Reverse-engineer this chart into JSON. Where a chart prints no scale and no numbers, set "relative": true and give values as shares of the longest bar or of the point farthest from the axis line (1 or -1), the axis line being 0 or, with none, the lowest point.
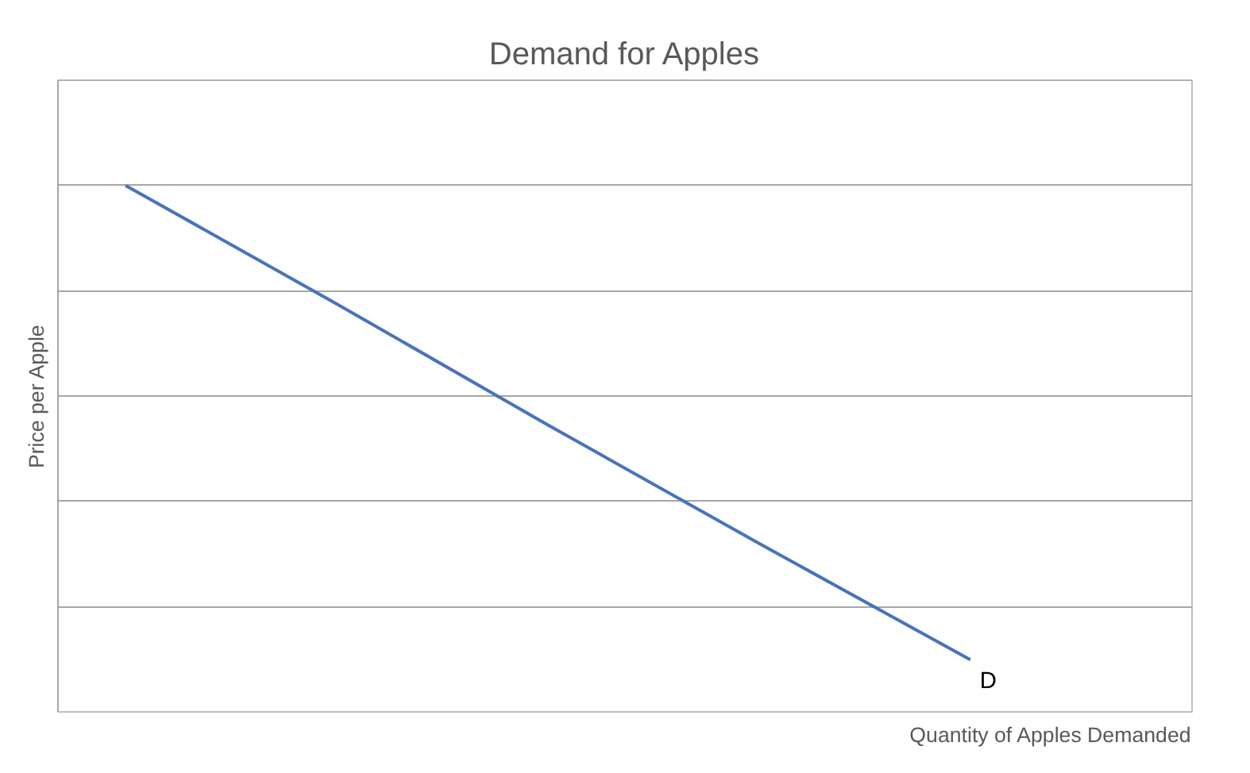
{
  "chart_data": {
    "type": "line",
    "title": "Demand for Apples",
    "xlabel": "Quantity of Apples Demanded",
    "ylabel": "Price per Apple",
    "categories": [
      null,
      null,
      null,
      null,
      null
    ],
    "relative": true,
    "series": [
      {
        "name": "D",
        "color": "#4472c4",
        "values": [
          1,
          0.775,
          0.545,
          0.32,
          0.099
        ]
      }
    ],
    "grid": "y",
    "legend": false,
    "marker": "none",
    "line_style": "solid"
  }
}
